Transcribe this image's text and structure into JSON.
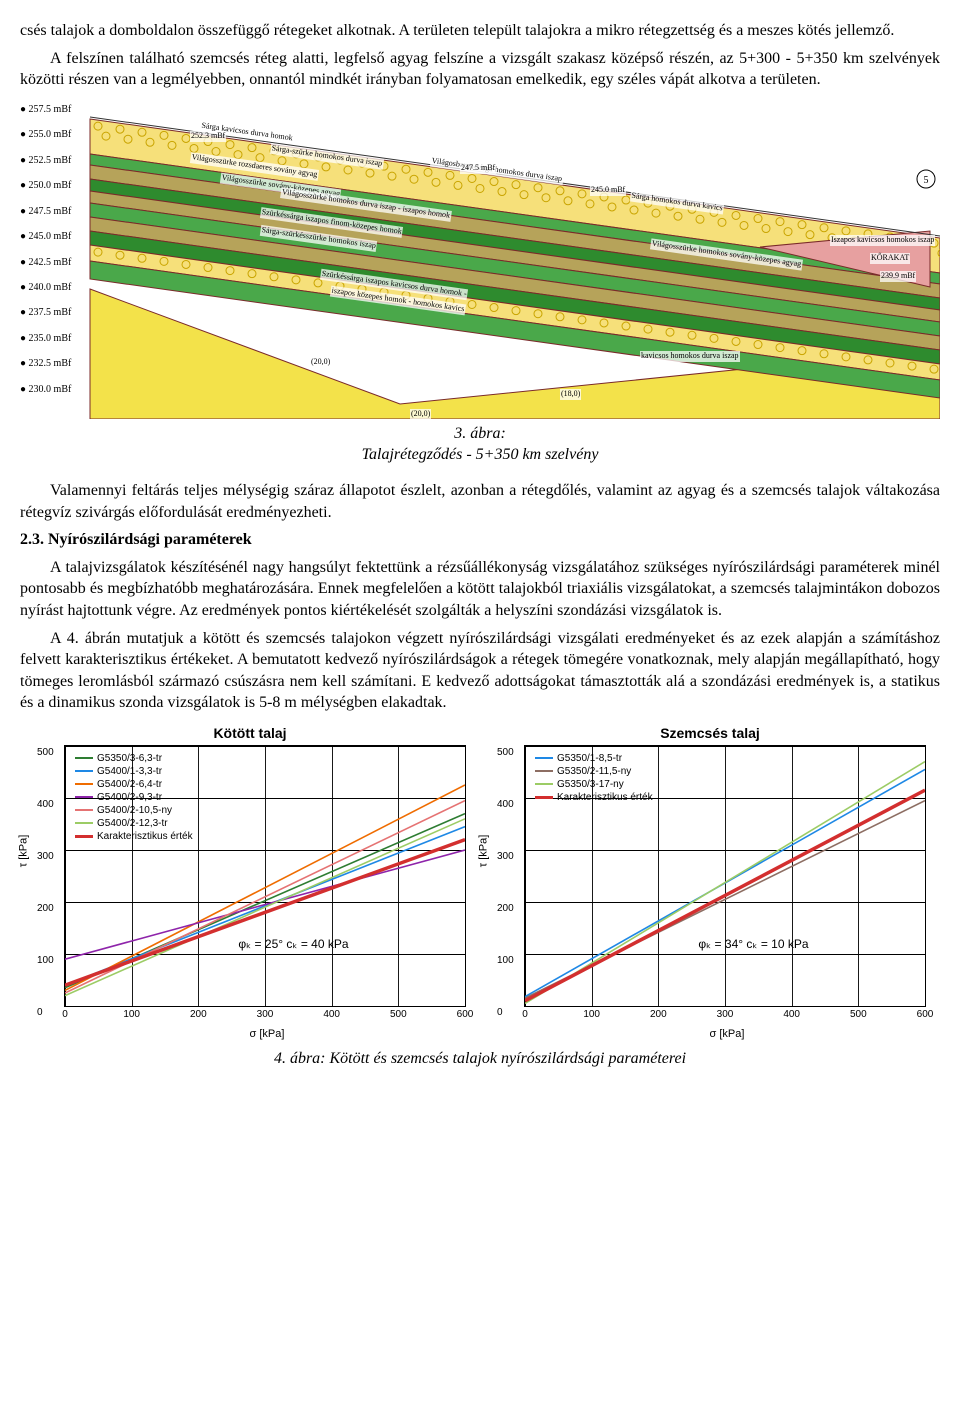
{
  "paragraphs": {
    "p1": "csés talajok a domboldalon összefüggő rétegeket alkotnak. A területen települt talajokra a mikro rétegzettség és a meszes kötés jellemző.",
    "p2": "A felszínen található szemcsés réteg alatti, legfelső agyag felszíne a vizsgált szakasz középső részén, az 5+300 - 5+350 km szelvények közötti részen van a legmélyebben, onnantól mindkét irányban folyamatosan emelkedik, egy széles vápát alkotva a területen.",
    "p3": "Valamennyi feltárás teljes mélységig száraz állapotot észlelt, azonban a rétegdőlés, valamint az agyag és a szemcsés talajok váltakozása rétegvíz szivárgás előfordulását eredményezheti.",
    "p4_head": "2.3.   Nyírószilárdsági paraméterek",
    "p4": "A talajvizsgálatok készítésénél nagy hangsúlyt fektettünk a rézsűállékonyság vizsgálatához szükséges nyírószilárdsági paraméterek minél pontosabb és megbízhatóbb meghatározására. Ennek megfelelően a kötött talajokból triaxiális vizsgálatokat, a szemcsés talajmintákon dobozos nyírást hajtottunk végre. Az eredmények pontos kiértékelését szolgálták a helyszíni szondázási vizsgálatok is.",
    "p5": "A 4. ábrán mutatjuk a kötött és szemcsés talajokon végzett nyírószilárdsági vizsgálati eredményeket és az ezek alapján a számításhoz felvett karakterisztikus értékeket. A bemutatott kedvező nyírószilárdságok a rétegek tömegére vonatkoznak, mely alapján megállapítható, hogy tömeges leromlásból származó csúszásra nem kell számítani. E kedvező adottságokat támasztották alá a szondázási eredmények is, a statikus és a dinamikus szonda vizsgálatok is 5-8 m mélységben elakadtak."
  },
  "fig3": {
    "caption_line1": "3. ábra:",
    "caption_line2": "Talajrétegződés - 5+350 km szelvény",
    "elevation_labels": [
      "257.5 mBf",
      "255.0 mBf",
      "252.5 mBf",
      "250.0 mBf",
      "247.5 mBf",
      "245.0 mBf",
      "242.5 mBf",
      "240.0 mBf",
      "237.5 mBf",
      "235.0 mBf",
      "232.5 mBf",
      "230.0 mBf"
    ],
    "colors": {
      "sky": "#ffffff",
      "gravel": "#f6e07a",
      "gravel_pattern": "#c9a400",
      "green1": "#4aa84a",
      "green2": "#2e8b2e",
      "brown": "#b6a35a",
      "yellow_deep": "#f3e24a",
      "pink": "#e7a0a0",
      "border": "#7a2a2a"
    },
    "layer_texts": [
      "Sárga kavicsos durva homok",
      "Világosszürke rozsdaeres sovány agyag",
      "Sárga-szürke homokos durva iszap",
      "Világosbarna-sárga homokos durva iszap",
      "Világosszürke sovány-közepes agyag",
      "Világosszürke homokos durva iszap - iszapos homok",
      "Szürkéssárga iszapos finom-közepes homok",
      "Sárga-szürkésszürke homokos iszap",
      "Szürkéssárga iszapos kavicsos durva homok -",
      "iszapos közepes homok - homokos kavics",
      "Világosszürke homokos sovány-közepes agyag",
      "Sárga homokos durva kavics",
      "Iszapos kavicsos homokos iszap",
      "KŐRAKAT",
      "kavicsos homokos durva iszap"
    ],
    "side_label": "5",
    "bottom_marks": [
      "(20,0)",
      "(18,0)",
      "(20,0)"
    ],
    "elev_marks": [
      "252.3 mBf",
      "247.5 mBf",
      "245.0 mBf",
      "239.9 mBf"
    ]
  },
  "fig4_caption": "4. ábra: Kötött és szemcsés talajok nyírószilárdsági paraméterei",
  "chartA": {
    "title": "Kötött talaj",
    "xlim": [
      0,
      600
    ],
    "ylim": [
      0,
      500
    ],
    "xticks": [
      0,
      100,
      200,
      300,
      400,
      500,
      600
    ],
    "yticks": [
      0,
      100,
      200,
      300,
      400,
      500
    ],
    "xlabel": "σ [kPa]",
    "ylabel": "τ [kPa]",
    "annotation": "φₖ = 25° cₖ = 40 kPa",
    "series": [
      {
        "label": "G5350/3-6,3-tr",
        "color": "#2e7d32",
        "p0": [
          0,
          35
        ],
        "p1": [
          600,
          370
        ]
      },
      {
        "label": "G5400/1-3,3-tr",
        "color": "#1e88e5",
        "p0": [
          0,
          40
        ],
        "p1": [
          600,
          345
        ]
      },
      {
        "label": "G5400/2-6,4-tr",
        "color": "#ef6c00",
        "p0": [
          0,
          30
        ],
        "p1": [
          600,
          425
        ]
      },
      {
        "label": "G5400/2-9,3-tr",
        "color": "#8e24aa",
        "p0": [
          0,
          90
        ],
        "p1": [
          600,
          300
        ]
      },
      {
        "label": "G5400/2-10,5-ny",
        "color": "#e57373",
        "p0": [
          0,
          25
        ],
        "p1": [
          600,
          395
        ]
      },
      {
        "label": "G5400/2-12,3-tr",
        "color": "#9ccc65",
        "p0": [
          0,
          20
        ],
        "p1": [
          600,
          360
        ]
      },
      {
        "label": "Karakterisztikus érték",
        "color": "#d32f2f",
        "p0": [
          0,
          40
        ],
        "p1": [
          600,
          320
        ],
        "bold": true
      }
    ]
  },
  "chartB": {
    "title": "Szemcsés talaj",
    "xlim": [
      0,
      600
    ],
    "ylim": [
      0,
      500
    ],
    "xticks": [
      0,
      100,
      200,
      300,
      400,
      500,
      600
    ],
    "yticks": [
      0,
      100,
      200,
      300,
      400,
      500
    ],
    "xlabel": "σ [kPa]",
    "ylabel": "τ [kPa]",
    "annotation": "φₖ = 34° cₖ = 10 kPa",
    "series": [
      {
        "label": "G5350/1-8,5-tr",
        "color": "#1e88e5",
        "p0": [
          0,
          18
        ],
        "p1": [
          600,
          455
        ]
      },
      {
        "label": "G5350/2-11,5-ny",
        "color": "#8d6e63",
        "p0": [
          0,
          15
        ],
        "p1": [
          600,
          395
        ]
      },
      {
        "label": "G5350/3-17-ny",
        "color": "#9ccc65",
        "p0": [
          0,
          5
        ],
        "p1": [
          600,
          470
        ]
      },
      {
        "label": "Karakterisztikus érték",
        "color": "#d32f2f",
        "p0": [
          0,
          10
        ],
        "p1": [
          600,
          415
        ],
        "bold": true
      }
    ]
  }
}
